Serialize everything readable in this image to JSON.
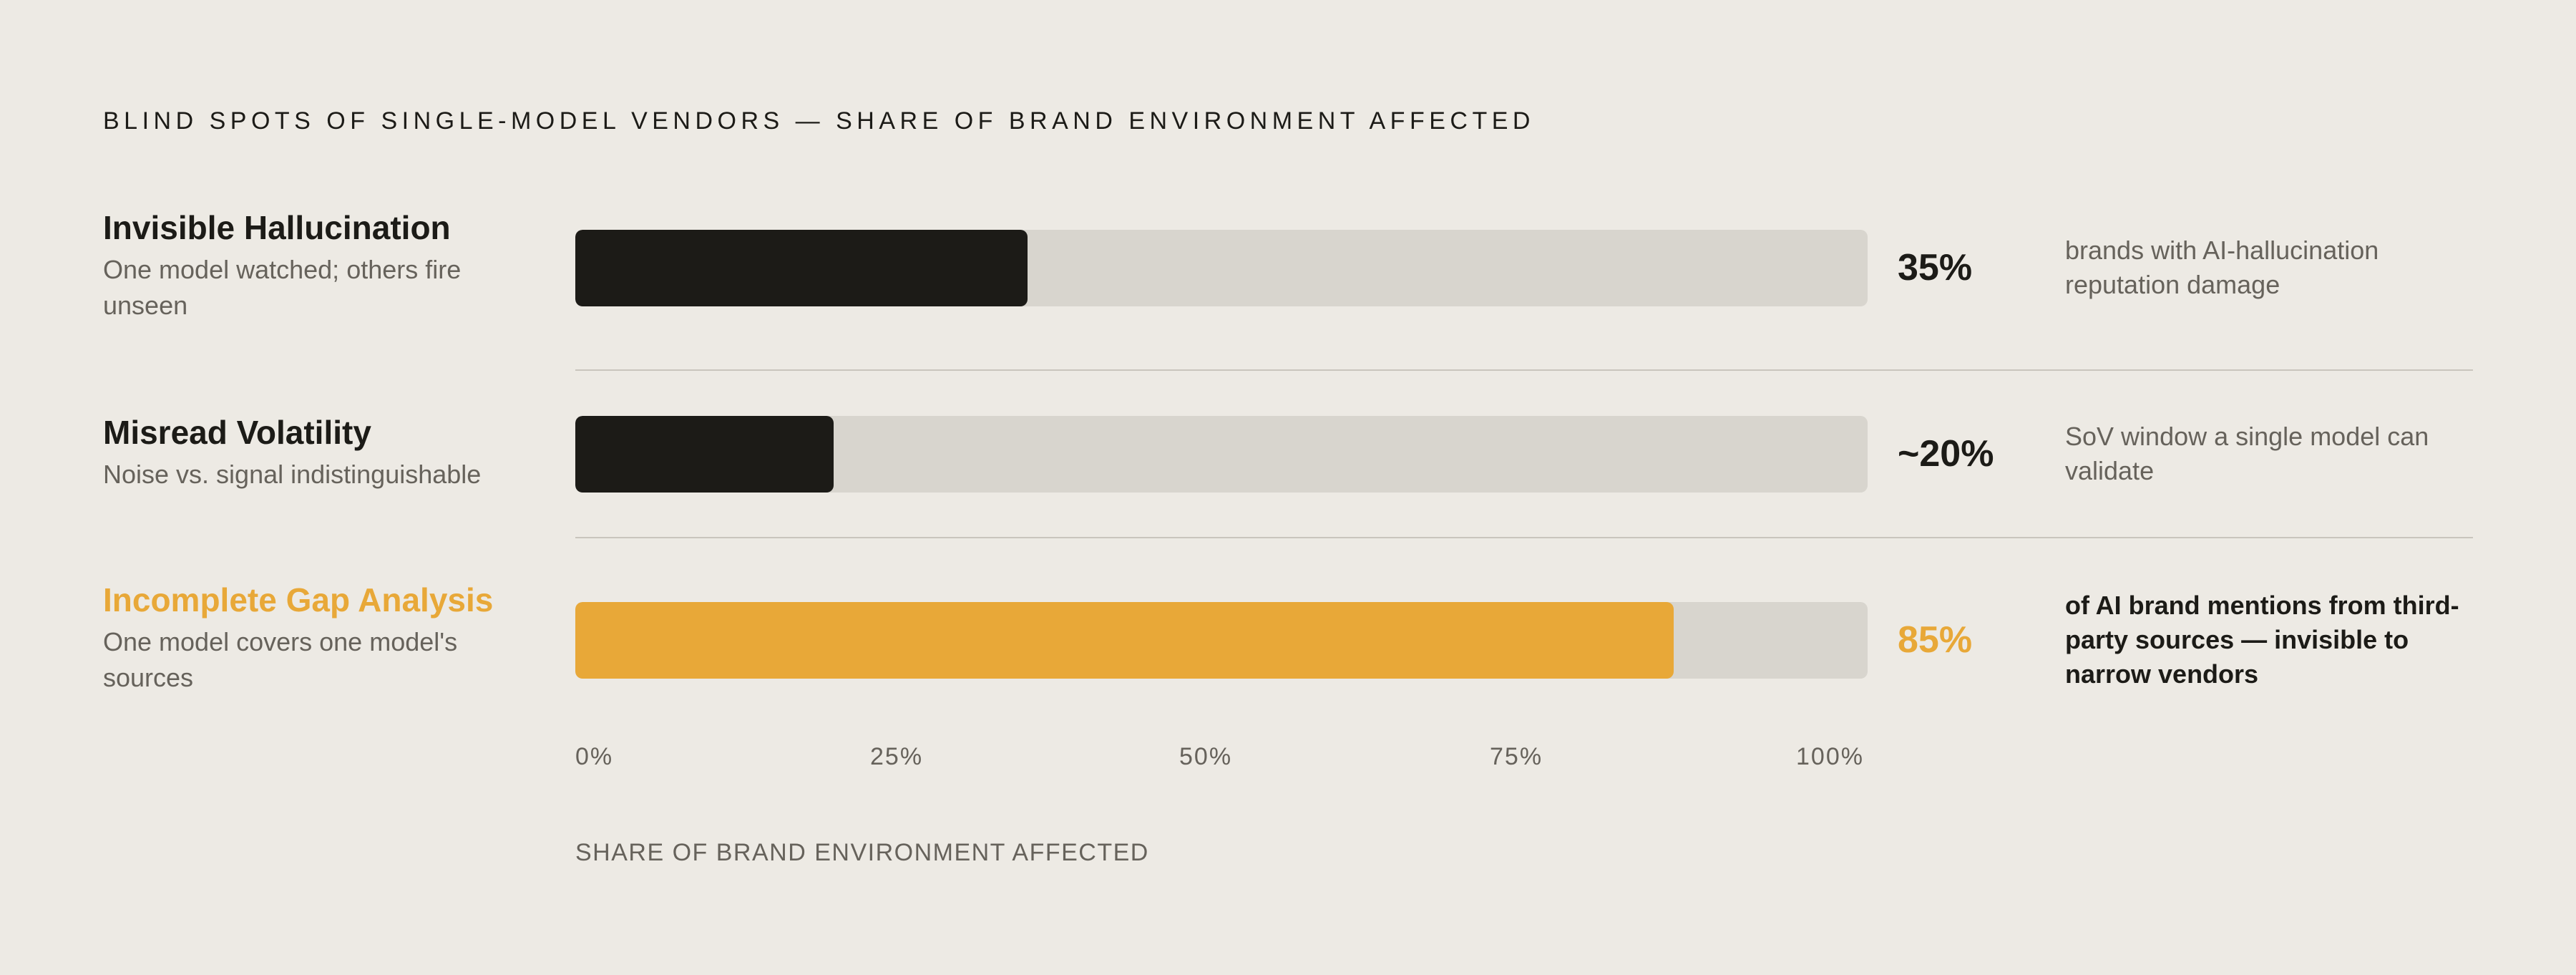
{
  "colors": {
    "background": "#EDEAE4",
    "dark_bar": "#1C1B17",
    "track": "#D8D5CE",
    "accent": "#E8A838",
    "muted_text": "#66625B"
  },
  "chart_data": {
    "type": "bar",
    "orientation": "horizontal",
    "title": "BLIND SPOTS OF SINGLE-MODEL VENDORS — SHARE OF BRAND ENVIRONMENT AFFECTED",
    "xlabel": "SHARE OF BRAND ENVIRONMENT AFFECTED",
    "xlim": [
      0,
      100
    ],
    "ticks": [
      "0%",
      "25%",
      "50%",
      "75%",
      "100%"
    ],
    "grid": false,
    "categories": [
      "Invisible Hallucination",
      "Misread Volatility",
      "Incomplete Gap Analysis"
    ],
    "values": [
      35,
      20,
      85
    ],
    "rows": [
      {
        "name": "Invisible Hallucination",
        "subtitle": "One model watched; others fire unseen",
        "value": 35,
        "value_label": "35%",
        "note": "brands with AI-hallucination reputation damage",
        "highlight": false
      },
      {
        "name": "Misread Volatility",
        "subtitle": "Noise vs. signal indistinguishable",
        "value": 20,
        "value_label": "~20%",
        "note": "SoV window a single model can validate",
        "highlight": false
      },
      {
        "name": "Incomplete Gap Analysis",
        "subtitle": "One model covers one model's sources",
        "value": 85,
        "value_label": "85%",
        "note": "of AI brand mentions from third-party sources — invisible to narrow vendors",
        "highlight": true
      }
    ]
  }
}
